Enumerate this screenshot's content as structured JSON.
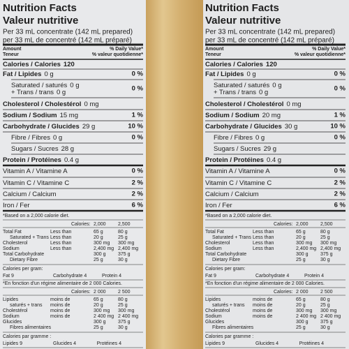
{
  "labels": [
    {
      "title": "Nutrition Facts",
      "subtitle": "Valeur nutritive",
      "serving_en": "Per 33 mL concentrate (142 mL prepared)",
      "serving_fr": "per 33 mL de concentré (142 mL préparé)",
      "header": {
        "amount": "Amount",
        "teneur": "Teneur",
        "dv": "% Daily Value*",
        "vq": "% valeur quotidienne*"
      },
      "rows": [
        {
          "name": "Calories / Calories",
          "amount": "120"
        },
        {
          "name": "Fat / Lipides",
          "amount": "0 g",
          "dv": "0 %"
        },
        {
          "name": "Saturated / saturés",
          "amount": "0 g"
        },
        {
          "name": "+ Trans / trans",
          "amount": "0 g",
          "dv": "0 %"
        },
        {
          "name": "Cholesterol / Cholestérol",
          "amount": "0 mg"
        },
        {
          "name": "Sodium / Sodium",
          "amount": "15 mg",
          "dv": "1 %"
        },
        {
          "name": "Carbohydrate / Glucides",
          "amount": "29 g",
          "dv": "10 %"
        },
        {
          "name": "Fibre / Fibres",
          "amount": "0 g",
          "dv": "0 %"
        },
        {
          "name": "Sugars / Sucres",
          "amount": "28 g"
        },
        {
          "name": "Protein / Protéines",
          "amount": "0.4 g"
        },
        {
          "name": "Vitamin A / Vitamine A",
          "dv": "0 %"
        },
        {
          "name": "Vitamin C / Vitamine C",
          "dv": "2 %"
        },
        {
          "name": "Calcium / Calcium",
          "dv": "2 %"
        },
        {
          "name": "Iron / Fer",
          "dv": "6 %"
        }
      ],
      "fn_en": {
        "note": "*Based on a 2,000 calorie diet.",
        "header": [
          "Calories:",
          "2,000",
          "2,500"
        ],
        "rows": [
          [
            "Total Fat",
            "Less than",
            "65 g",
            "80 g"
          ],
          [
            "Saturated + Trans",
            "Less than",
            "20 g",
            "25 g"
          ],
          [
            "Cholesterol",
            "Less than",
            "300 mg",
            "300 mg"
          ],
          [
            "Sodium",
            "Less than",
            "2,400 mg",
            "2,400 mg"
          ],
          [
            "Total Carbohydrate",
            null,
            "300 g",
            "375 g"
          ],
          [
            "Dietary Fibre",
            null,
            "25 g",
            "30 g"
          ]
        ],
        "per_gram_title": "Calories per gram:",
        "per_gram": [
          "Fat 9",
          "Carbohydrate 4",
          "Protein 4"
        ]
      },
      "fn_fr": {
        "note": "*En fonction d'un régime alimentaire de 2 000 Calories.",
        "header": [
          "Calories:",
          "2 000",
          "2 500"
        ],
        "rows": [
          [
            "Lipides",
            "moins de",
            "65 g",
            "80 g"
          ],
          [
            "saturés + trans",
            "moins de",
            "20 g",
            "25 g"
          ],
          [
            "Cholestérol",
            "moins de",
            "300 mg",
            "300 mg"
          ],
          [
            "Sodium",
            "moins de",
            "2 400 mg",
            "2 400 mg"
          ],
          [
            "Glucides",
            null,
            "300 g",
            "375 g"
          ],
          [
            "Fibres alimentaires",
            null,
            "25 g",
            "30 g"
          ]
        ],
        "per_gram_title": "Calories par gramme :",
        "per_gram": [
          "Lipides 9",
          "Glucides 4",
          "Protéines 4"
        ]
      }
    },
    {
      "title": "Nutrition Facts",
      "subtitle": "Valeur nutritive",
      "serving_en": "Per 33 mL concentrate (142 mL prepared)",
      "serving_fr": "per 33 mL de concentré (142 mL préparé)",
      "header": {
        "amount": "Amount",
        "teneur": "Teneur",
        "dv": "% Daily Value*",
        "vq": "% valeur quotidienne*"
      },
      "rows": [
        {
          "name": "Calories / Calories",
          "amount": "120"
        },
        {
          "name": "Fat / Lipides",
          "amount": "0 g",
          "dv": "0 %"
        },
        {
          "name": "Saturated / saturés",
          "amount": "0 g"
        },
        {
          "name": "+ Trans / trans",
          "amount": "0 g",
          "dv": "0 %"
        },
        {
          "name": "Cholesterol / Cholestérol",
          "amount": "0 mg"
        },
        {
          "name": "Sodium / Sodium",
          "amount": "20 mg",
          "dv": "1 %"
        },
        {
          "name": "Carbohydrate / Glucides",
          "amount": "30 g",
          "dv": "10 %"
        },
        {
          "name": "Fibre / Fibres",
          "amount": "0 g",
          "dv": "0 %"
        },
        {
          "name": "Sugars / Sucres",
          "amount": "29 g"
        },
        {
          "name": "Protein / Protéines",
          "amount": "0.4 g"
        },
        {
          "name": "Vitamin A / Vitamine A",
          "dv": "0 %"
        },
        {
          "name": "Vitamin C / Vitamine C",
          "dv": "2 %"
        },
        {
          "name": "Calcium / Calcium",
          "dv": "2 %"
        },
        {
          "name": "Iron / Fer",
          "dv": "6 %"
        }
      ],
      "fn_en": {
        "note": "*Based on a 2,000 calorie diet.",
        "header": [
          "Calories:",
          "2,000",
          "2,500"
        ],
        "rows": [
          [
            "Total Fat",
            "Less than",
            "65 g",
            "80 g"
          ],
          [
            "Saturated + Trans",
            "Less than",
            "20 g",
            "25 g"
          ],
          [
            "Cholesterol",
            "Less than",
            "300 mg",
            "300 mg"
          ],
          [
            "Sodium",
            "Less than",
            "2,400 mg",
            "2,400 mg"
          ],
          [
            "Total Carbohydrate",
            null,
            "300 g",
            "375 g"
          ],
          [
            "Dietary Fibre",
            null,
            "25 g",
            "30 g"
          ]
        ],
        "per_gram_title": "Calories per gram:",
        "per_gram": [
          "Fat 9",
          "Carbohydrate 4",
          "Protein 4"
        ]
      },
      "fn_fr": {
        "note": "*En fonction d'un régime alimentaire de 2 000 Calories.",
        "header": [
          "Calories:",
          "2 000",
          "2 500"
        ],
        "rows": [
          [
            "Lipides",
            "moins de",
            "65 g",
            "80 g"
          ],
          [
            "saturés + trans",
            "moins de",
            "20 g",
            "25 g"
          ],
          [
            "Cholestérol",
            "moins de",
            "300 mg",
            "300 mg"
          ],
          [
            "Sodium",
            "moins de",
            "2 400 mg",
            "2 400 mg"
          ],
          [
            "Glucides",
            null,
            "300 g",
            "375 g"
          ],
          [
            "Fibres alimentaires",
            null,
            "25 g",
            "30 g"
          ]
        ],
        "per_gram_title": "Calories par gramme :",
        "per_gram": [
          "Lipides 9",
          "Glucides 4",
          "Protéines 4"
        ]
      }
    }
  ]
}
